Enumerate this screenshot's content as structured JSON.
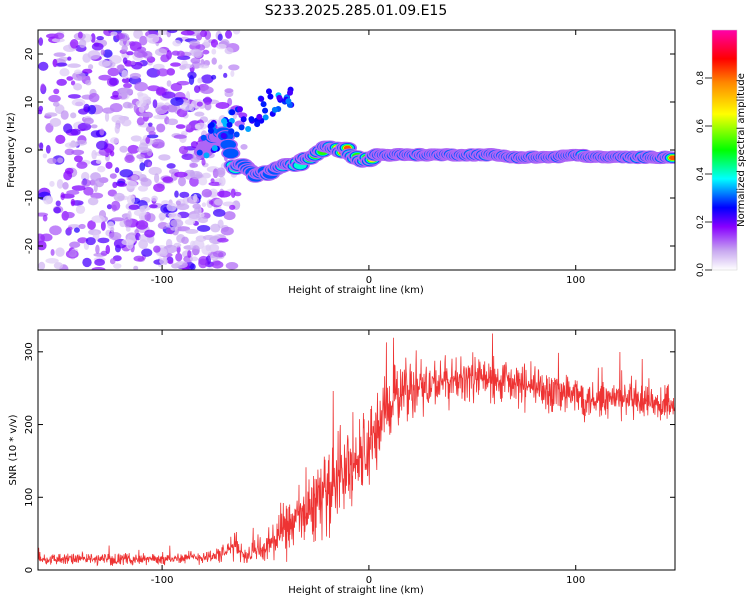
{
  "title": "S233.2025.285.01.09.E15",
  "colors": {
    "snr_line": "#ee3333",
    "colorbar": [
      "#ffffff",
      "#c8a8f0",
      "#8800ff",
      "#0000ff",
      "#00ffff",
      "#00ff00",
      "#ffff00",
      "#ff8800",
      "#ff0000",
      "#ff00aa"
    ]
  },
  "chart_data": [
    {
      "type": "heatmap",
      "name": "spectrogram",
      "xlabel": "Height of straight line (km)",
      "ylabel": "Frequency (Hz)",
      "xlim": [
        -160,
        148
      ],
      "ylim": [
        -25,
        25
      ],
      "xticks": [
        -100,
        0,
        100
      ],
      "xtick_labels": [
        "-100",
        "0",
        "100"
      ],
      "yticks": [
        -20,
        -10,
        0,
        10,
        20
      ],
      "ytick_labels": [
        "-20",
        "-10",
        "0",
        "10",
        "20"
      ],
      "colorbar": {
        "label": "Normalized spectral amplitude",
        "range": [
          0,
          1
        ],
        "ticks": [
          0.0,
          0.2,
          0.4,
          0.6,
          0.8
        ],
        "tick_labels": [
          "0.0",
          "0.2",
          "0.4",
          "0.6",
          "0.8"
        ]
      },
      "ridge": {
        "description_free_points": true,
        "x": [
          -80,
          -75,
          -70,
          -65,
          -60,
          -55,
          -50,
          -45,
          -40,
          -35,
          -30,
          -25,
          -20,
          -15,
          -10,
          -5,
          0,
          5,
          10,
          20,
          30,
          40,
          50,
          60,
          70,
          80,
          90,
          100,
          110,
          120,
          130,
          140,
          148
        ],
        "y": [
          0,
          2,
          4,
          -4,
          -3,
          -5,
          -5,
          -4,
          -3,
          -3,
          -2,
          -1,
          1,
          0,
          0,
          -2,
          -2,
          -1,
          -1,
          -1,
          -1,
          -1,
          -1,
          -1,
          -1.5,
          -1.5,
          -1.5,
          -1,
          -1.5,
          -1.5,
          -1.5,
          -1.5,
          -1.5
        ],
        "amplitude": [
          0.15,
          0.2,
          0.2,
          0.35,
          0.3,
          0.2,
          0.25,
          0.3,
          0.35,
          0.3,
          0.4,
          0.5,
          0.55,
          0.7,
          0.85,
          0.5,
          0.5,
          0.9,
          0.95,
          0.95,
          0.85,
          0.75,
          0.6,
          0.7,
          0.75,
          0.7,
          0.65,
          0.6,
          0.75,
          0.85,
          0.9,
          0.9,
          0.9
        ]
      },
      "noise_region": {
        "x_range": [
          -160,
          -65
        ],
        "amplitude_range": [
          0.0,
          0.2
        ]
      }
    },
    {
      "type": "line",
      "name": "snr",
      "xlabel": "Height of straight line (km)",
      "ylabel": "SNR (10 * v/v)",
      "xlim": [
        -160,
        148
      ],
      "ylim": [
        0,
        330
      ],
      "xticks": [
        -100,
        0,
        100
      ],
      "xtick_labels": [
        "-100",
        "0",
        "100"
      ],
      "yticks": [
        0,
        100,
        200,
        300
      ],
      "ytick_labels": [
        "0",
        "100",
        "200",
        "300"
      ],
      "envelope": {
        "x": [
          -160,
          -140,
          -120,
          -100,
          -80,
          -70,
          -65,
          -60,
          -50,
          -40,
          -30,
          -20,
          -10,
          0,
          5,
          10,
          20,
          30,
          40,
          50,
          60,
          70,
          80,
          90,
          100,
          110,
          120,
          130,
          140,
          148
        ],
        "mean": [
          15,
          15,
          15,
          15,
          18,
          22,
          35,
          20,
          30,
          55,
          80,
          110,
          140,
          165,
          200,
          230,
          250,
          255,
          260,
          265,
          260,
          255,
          250,
          245,
          240,
          235,
          235,
          230,
          225,
          230
        ],
        "spread": [
          10,
          10,
          10,
          10,
          12,
          15,
          25,
          15,
          30,
          50,
          60,
          70,
          80,
          80,
          70,
          60,
          50,
          45,
          40,
          40,
          40,
          40,
          40,
          40,
          40,
          35,
          35,
          35,
          35,
          35
        ]
      }
    }
  ]
}
